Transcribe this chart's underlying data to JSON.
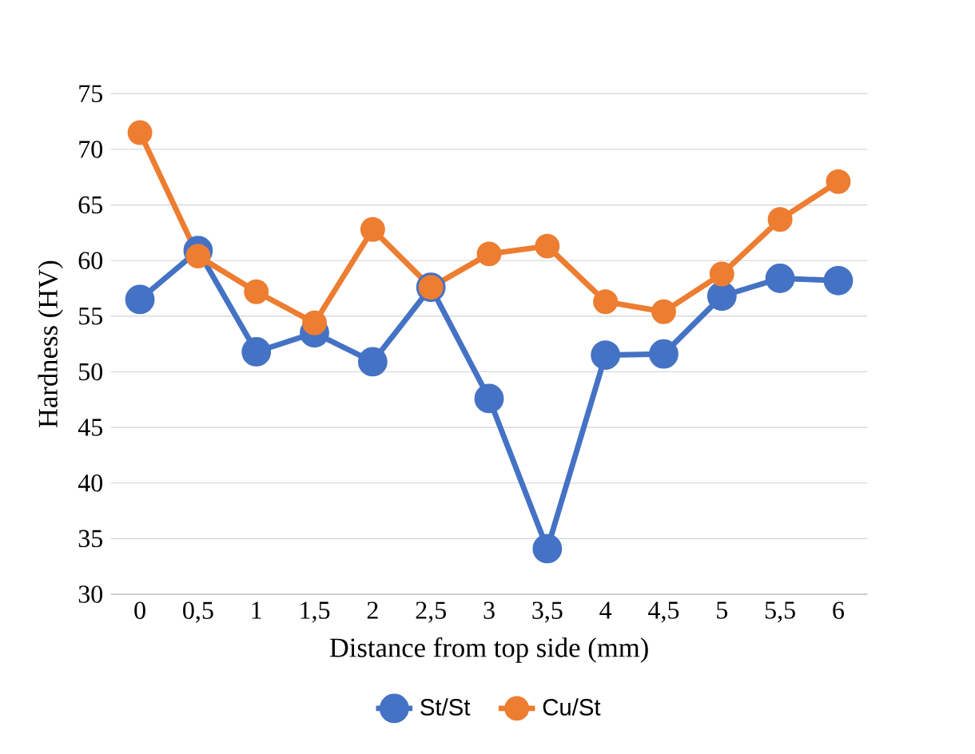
{
  "chart_data": {
    "type": "line",
    "xlabel": "Distance from top side (mm)",
    "ylabel": "Hardness (HV)",
    "categories": [
      "0",
      "0,5",
      "1",
      "1,5",
      "2",
      "2,5",
      "3",
      "3,5",
      "4",
      "4,5",
      "5",
      "5,5",
      "6"
    ],
    "series": [
      {
        "name": "St/St",
        "color": "#4472c4",
        "values": [
          56.5,
          60.9,
          51.8,
          53.5,
          50.9,
          57.6,
          47.6,
          34.1,
          51.5,
          51.6,
          56.8,
          58.4,
          58.2
        ]
      },
      {
        "name": "Cu/St",
        "color": "#ed7d31",
        "values": [
          71.5,
          60.4,
          57.2,
          54.4,
          62.8,
          57.6,
          60.6,
          61.3,
          56.3,
          55.4,
          58.8,
          63.7,
          67.1
        ]
      }
    ],
    "ylim": [
      30,
      75
    ],
    "yticks": [
      30,
      35,
      40,
      45,
      50,
      55,
      60,
      65,
      70,
      75
    ],
    "grid": "y",
    "legend": "bottom",
    "marker": "circle",
    "line_style": "solid"
  }
}
